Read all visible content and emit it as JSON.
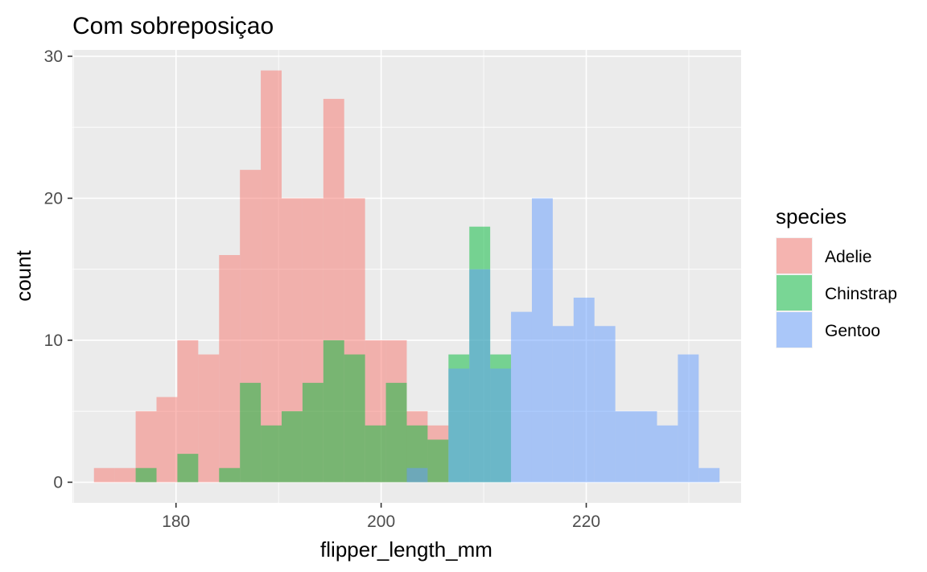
{
  "chart_data": {
    "type": "bar",
    "subtype": "overlapping-histogram",
    "title": "Com sobreposiçao",
    "xlabel": "flipper_length_mm",
    "ylabel": "count",
    "xlim": [
      169.9,
      235.1
    ],
    "ylim": [
      -1.45,
      30.45
    ],
    "x_ticks": [
      180,
      200,
      220
    ],
    "y_ticks": [
      0,
      10,
      20,
      30
    ],
    "bin_width": 2.0333,
    "bin_start": 172,
    "grid": true,
    "opacity": 0.5,
    "legend": {
      "title": "species",
      "position": "right"
    },
    "series": [
      {
        "name": "Adelie",
        "color": "#F8766D",
        "counts": [
          1,
          1,
          5,
          6,
          10,
          9,
          16,
          22,
          29,
          20,
          20,
          27,
          20,
          10,
          10,
          5,
          4
        ]
      },
      {
        "name": "Chinstrap",
        "color": "#00BA38",
        "counts": [
          0,
          0,
          1,
          0,
          2,
          0,
          1,
          7,
          4,
          5,
          7,
          10,
          9,
          4,
          7,
          4,
          3,
          9,
          18,
          9
        ]
      },
      {
        "name": "Gentoo",
        "color": "#619CFF",
        "counts": [
          0,
          0,
          0,
          0,
          0,
          0,
          0,
          0,
          0,
          0,
          0,
          0,
          0,
          0,
          0,
          1,
          0,
          8,
          15,
          8,
          12,
          20,
          11,
          13,
          11,
          5,
          5,
          4,
          9,
          1
        ]
      }
    ]
  }
}
